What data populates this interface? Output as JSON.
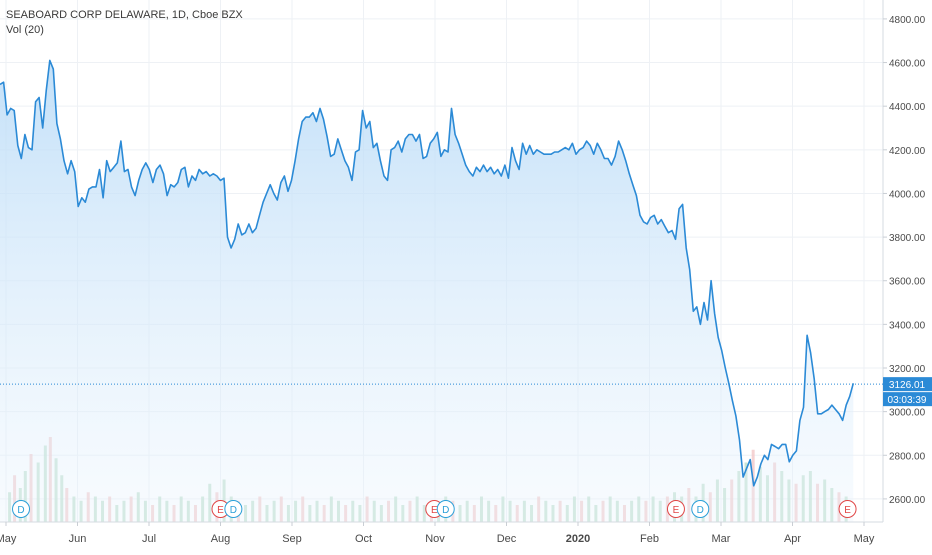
{
  "legend": {
    "symbol_line": "SEABOARD CORP DELAWARE, 1D, Cboe BZX",
    "volume_line": "Vol (20)"
  },
  "price_label": "3126.01",
  "countdown_label": "03:03:39",
  "colors": {
    "line": "#2b8ad6",
    "area_top": "#b9dbf7",
    "grid": "#eef1f5",
    "vol_up": "#b8dcc7",
    "vol_down": "#f2c4c4",
    "earnings": "#e04646",
    "dividend": "#2a9fd8"
  },
  "chart_data": {
    "type": "area",
    "title": "SEABOARD CORP DELAWARE, 1D, Cboe BZX",
    "ylim": [
      2500,
      4850
    ],
    "y_ticks": [
      2600,
      2800,
      3000,
      3200,
      3400,
      3600,
      3800,
      4000,
      4200,
      4400,
      4600,
      4800
    ],
    "y_tick_labels": [
      "2600.00",
      "2800.00",
      "3000.00",
      "3200.00",
      "3400.00",
      "3600.00",
      "3800.00",
      "4000.00",
      "4200.00",
      "4400.00",
      "4600.00",
      "4800.00"
    ],
    "x_labels": [
      {
        "label": "May",
        "month": 0
      },
      {
        "label": "Jun",
        "month": 1
      },
      {
        "label": "Jul",
        "month": 2
      },
      {
        "label": "Aug",
        "month": 3
      },
      {
        "label": "Sep",
        "month": 4
      },
      {
        "label": "Oct",
        "month": 5
      },
      {
        "label": "Nov",
        "month": 6
      },
      {
        "label": "Dec",
        "month": 7
      },
      {
        "label": "2020",
        "month": 8
      },
      {
        "label": "Feb",
        "month": 9
      },
      {
        "label": "Mar",
        "month": 10
      },
      {
        "label": "Apr",
        "month": 11
      },
      {
        "label": "May",
        "month": 12
      }
    ],
    "x_start": "May 2019",
    "last_price": 3126.01,
    "series": [
      {
        "values": [
          4500,
          4510,
          4360,
          4390,
          4380,
          4220,
          4160,
          4270,
          4210,
          4200,
          4420,
          4440,
          4300,
          4470,
          4610,
          4570,
          4320,
          4250,
          4150,
          4090,
          4150,
          4100,
          3940,
          3980,
          3960,
          4020,
          4030,
          4030,
          4110,
          3980,
          4150,
          4100,
          4120,
          4140,
          4240,
          4100,
          4110,
          4030,
          3990,
          4060,
          4110,
          4140,
          4110,
          4050,
          4110,
          4130,
          4090,
          3990,
          4040,
          4030,
          4050,
          4110,
          4120,
          4030,
          4080,
          4060,
          4110,
          4090,
          4100,
          4080,
          4090,
          4080,
          4060,
          4070,
          3800,
          3750,
          3790,
          3860,
          3810,
          3820,
          3860,
          3820,
          3840,
          3900,
          3960,
          4000,
          4040,
          4000,
          3970,
          4050,
          4080,
          4010,
          4060,
          4150,
          4250,
          4330,
          4350,
          4350,
          4370,
          4330,
          4390,
          4340,
          4260,
          4170,
          4180,
          4250,
          4200,
          4150,
          4120,
          4060,
          4190,
          4200,
          4380,
          4300,
          4330,
          4210,
          4230,
          4150,
          4080,
          4060,
          4200,
          4210,
          4240,
          4190,
          4250,
          4270,
          4270,
          4240,
          4270,
          4160,
          4170,
          4230,
          4250,
          4280,
          4170,
          4200,
          4190,
          4390,
          4270,
          4230,
          4180,
          4130,
          4100,
          4080,
          4120,
          4100,
          4130,
          4100,
          4120,
          4090,
          4110,
          4080,
          4130,
          4070,
          4210,
          4150,
          4110,
          4230,
          4180,
          4220,
          4180,
          4200,
          4190,
          4180,
          4180,
          4180,
          4190,
          4190,
          4200,
          4210,
          4200,
          4230,
          4180,
          4200,
          4210,
          4240,
          4220,
          4180,
          4230,
          4200,
          4160,
          4160,
          4130,
          4170,
          4240,
          4200,
          4150,
          4090,
          4040,
          3990,
          3900,
          3870,
          3860,
          3890,
          3900,
          3860,
          3880,
          3850,
          3820,
          3830,
          3790,
          3930,
          3950,
          3750,
          3650,
          3460,
          3480,
          3400,
          3500,
          3420,
          3600,
          3450,
          3340,
          3280,
          3200,
          3130,
          3050,
          2980,
          2870,
          2700,
          2740,
          2780,
          2660,
          2700,
          2760,
          2800,
          2780,
          2850,
          2840,
          2830,
          2850,
          2850,
          2770,
          2800,
          2820,
          2960,
          3020,
          3350,
          3270,
          3150,
          2990,
          2990,
          3000,
          3010,
          3030,
          3010,
          2990,
          2960,
          3030,
          3070,
          3130
        ]
      }
    ],
    "volume": {
      "name": "Vol (20)",
      "bars": [
        {
          "m": 0.05,
          "h": 0.35
        },
        {
          "m": 0.12,
          "h": 0.55
        },
        {
          "m": 0.2,
          "h": 0.4
        },
        {
          "m": 0.27,
          "h": 0.6
        },
        {
          "m": 0.35,
          "h": 0.8
        },
        {
          "m": 0.45,
          "h": 0.7
        },
        {
          "m": 0.55,
          "h": 0.9
        },
        {
          "m": 0.62,
          "h": 1.0
        },
        {
          "m": 0.7,
          "h": 0.75
        },
        {
          "m": 0.78,
          "h": 0.55
        },
        {
          "m": 0.85,
          "h": 0.4
        },
        {
          "m": 0.95,
          "h": 0.3
        },
        {
          "m": 1.05,
          "h": 0.25
        },
        {
          "m": 1.15,
          "h": 0.35
        },
        {
          "m": 1.25,
          "h": 0.3
        },
        {
          "m": 1.35,
          "h": 0.25
        },
        {
          "m": 1.45,
          "h": 0.3
        },
        {
          "m": 1.55,
          "h": 0.2
        },
        {
          "m": 1.65,
          "h": 0.25
        },
        {
          "m": 1.75,
          "h": 0.3
        },
        {
          "m": 1.85,
          "h": 0.35
        },
        {
          "m": 1.95,
          "h": 0.25
        },
        {
          "m": 2.05,
          "h": 0.2
        },
        {
          "m": 2.15,
          "h": 0.3
        },
        {
          "m": 2.25,
          "h": 0.25
        },
        {
          "m": 2.35,
          "h": 0.2
        },
        {
          "m": 2.45,
          "h": 0.3
        },
        {
          "m": 2.55,
          "h": 0.25
        },
        {
          "m": 2.65,
          "h": 0.2
        },
        {
          "m": 2.75,
          "h": 0.3
        },
        {
          "m": 2.85,
          "h": 0.45
        },
        {
          "m": 2.95,
          "h": 0.35
        },
        {
          "m": 3.05,
          "h": 0.5
        },
        {
          "m": 3.15,
          "h": 0.3
        },
        {
          "m": 3.25,
          "h": 0.25
        },
        {
          "m": 3.35,
          "h": 0.2
        },
        {
          "m": 3.45,
          "h": 0.25
        },
        {
          "m": 3.55,
          "h": 0.3
        },
        {
          "m": 3.65,
          "h": 0.2
        },
        {
          "m": 3.75,
          "h": 0.25
        },
        {
          "m": 3.85,
          "h": 0.3
        },
        {
          "m": 3.95,
          "h": 0.2
        },
        {
          "m": 4.05,
          "h": 0.25
        },
        {
          "m": 4.15,
          "h": 0.3
        },
        {
          "m": 4.25,
          "h": 0.2
        },
        {
          "m": 4.35,
          "h": 0.25
        },
        {
          "m": 4.45,
          "h": 0.2
        },
        {
          "m": 4.55,
          "h": 0.3
        },
        {
          "m": 4.65,
          "h": 0.25
        },
        {
          "m": 4.75,
          "h": 0.2
        },
        {
          "m": 4.85,
          "h": 0.25
        },
        {
          "m": 4.95,
          "h": 0.2
        },
        {
          "m": 5.05,
          "h": 0.3
        },
        {
          "m": 5.15,
          "h": 0.25
        },
        {
          "m": 5.25,
          "h": 0.2
        },
        {
          "m": 5.35,
          "h": 0.25
        },
        {
          "m": 5.45,
          "h": 0.3
        },
        {
          "m": 5.55,
          "h": 0.2
        },
        {
          "m": 5.65,
          "h": 0.25
        },
        {
          "m": 5.75,
          "h": 0.3
        },
        {
          "m": 5.85,
          "h": 0.2
        },
        {
          "m": 5.95,
          "h": 0.25
        },
        {
          "m": 6.05,
          "h": 0.2
        },
        {
          "m": 6.15,
          "h": 0.3
        },
        {
          "m": 6.25,
          "h": 0.25
        },
        {
          "m": 6.35,
          "h": 0.2
        },
        {
          "m": 6.45,
          "h": 0.25
        },
        {
          "m": 6.55,
          "h": 0.2
        },
        {
          "m": 6.65,
          "h": 0.3
        },
        {
          "m": 6.75,
          "h": 0.25
        },
        {
          "m": 6.85,
          "h": 0.2
        },
        {
          "m": 6.95,
          "h": 0.3
        },
        {
          "m": 7.05,
          "h": 0.25
        },
        {
          "m": 7.15,
          "h": 0.2
        },
        {
          "m": 7.25,
          "h": 0.25
        },
        {
          "m": 7.35,
          "h": 0.2
        },
        {
          "m": 7.45,
          "h": 0.3
        },
        {
          "m": 7.55,
          "h": 0.25
        },
        {
          "m": 7.65,
          "h": 0.2
        },
        {
          "m": 7.75,
          "h": 0.25
        },
        {
          "m": 7.85,
          "h": 0.2
        },
        {
          "m": 7.95,
          "h": 0.3
        },
        {
          "m": 8.05,
          "h": 0.25
        },
        {
          "m": 8.15,
          "h": 0.3
        },
        {
          "m": 8.25,
          "h": 0.2
        },
        {
          "m": 8.35,
          "h": 0.25
        },
        {
          "m": 8.45,
          "h": 0.3
        },
        {
          "m": 8.55,
          "h": 0.25
        },
        {
          "m": 8.65,
          "h": 0.2
        },
        {
          "m": 8.75,
          "h": 0.25
        },
        {
          "m": 8.85,
          "h": 0.3
        },
        {
          "m": 8.95,
          "h": 0.25
        },
        {
          "m": 9.05,
          "h": 0.3
        },
        {
          "m": 9.15,
          "h": 0.25
        },
        {
          "m": 9.25,
          "h": 0.3
        },
        {
          "m": 9.35,
          "h": 0.35
        },
        {
          "m": 9.45,
          "h": 0.3
        },
        {
          "m": 9.55,
          "h": 0.4
        },
        {
          "m": 9.65,
          "h": 0.3
        },
        {
          "m": 9.75,
          "h": 0.45
        },
        {
          "m": 9.85,
          "h": 0.35
        },
        {
          "m": 9.95,
          "h": 0.5
        },
        {
          "m": 10.05,
          "h": 0.4
        },
        {
          "m": 10.15,
          "h": 0.5
        },
        {
          "m": 10.25,
          "h": 0.6
        },
        {
          "m": 10.35,
          "h": 0.7
        },
        {
          "m": 10.45,
          "h": 0.85
        },
        {
          "m": 10.55,
          "h": 0.65
        },
        {
          "m": 10.65,
          "h": 0.55
        },
        {
          "m": 10.75,
          "h": 0.7
        },
        {
          "m": 10.85,
          "h": 0.6
        },
        {
          "m": 10.95,
          "h": 0.5
        },
        {
          "m": 11.05,
          "h": 0.45
        },
        {
          "m": 11.15,
          "h": 0.55
        },
        {
          "m": 11.25,
          "h": 0.6
        },
        {
          "m": 11.35,
          "h": 0.45
        },
        {
          "m": 11.45,
          "h": 0.5
        },
        {
          "m": 11.55,
          "h": 0.4
        },
        {
          "m": 11.65,
          "h": 0.35
        },
        {
          "m": 11.75,
          "h": 0.3
        }
      ]
    },
    "events": [
      {
        "type": "D",
        "m": 0.21
      },
      {
        "type": "E",
        "m": 3.0
      },
      {
        "type": "D",
        "m": 3.18
      },
      {
        "type": "E",
        "m": 5.99
      },
      {
        "type": "D",
        "m": 6.15
      },
      {
        "type": "E",
        "m": 9.37
      },
      {
        "type": "D",
        "m": 9.71
      },
      {
        "type": "E",
        "m": 11.77
      }
    ]
  }
}
